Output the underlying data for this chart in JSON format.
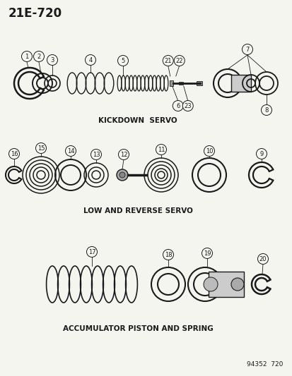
{
  "title": "21E-720",
  "bg_color": "#f5f5f0",
  "line_color": "#1a1a1a",
  "section1_label": "KICKDOWN  SERVO",
  "section2_label": "LOW AND REVERSE SERVO",
  "section3_label": "ACCUMULATOR PISTON AND SPRING",
  "catalog_num": "94352  720",
  "fig_width": 4.14,
  "fig_height": 5.33,
  "dpi": 100
}
